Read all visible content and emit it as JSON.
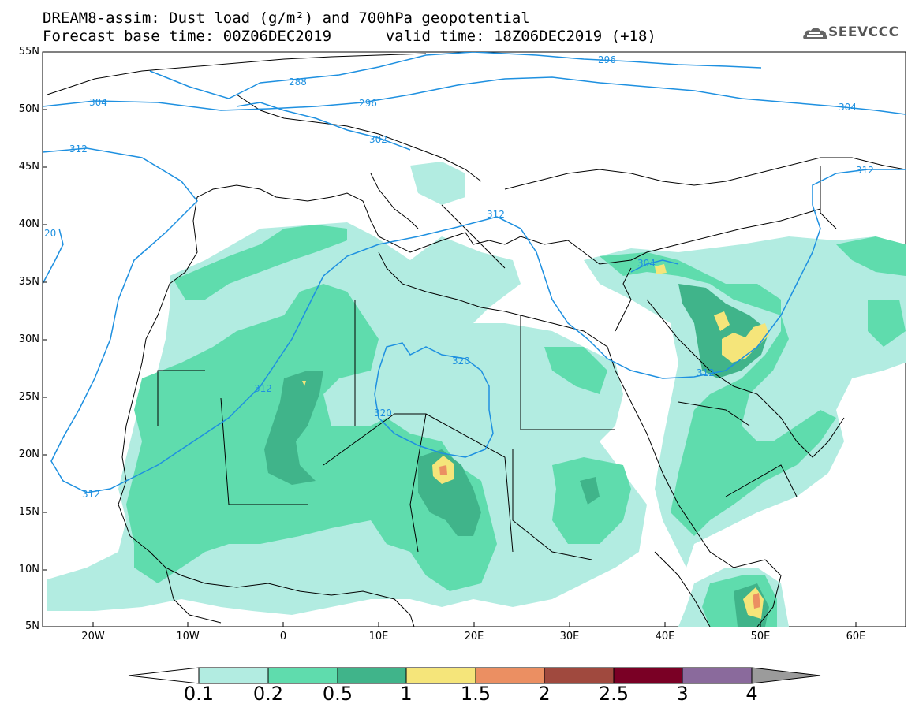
{
  "title": {
    "line1": "DREAM8-assim: Dust load (g/m²) and 700hPa geopotential",
    "line2_left": "Forecast base time: 00Z06DEC2019",
    "line2_right": "valid time: 18Z06DEC2019 (+18)"
  },
  "logo": {
    "text": "SEEVCCC",
    "icon": "cloud-icon"
  },
  "axes": {
    "lat_labels": [
      "55N",
      "50N",
      "45N",
      "40N",
      "35N",
      "30N",
      "25N",
      "20N",
      "15N",
      "10N",
      "5N"
    ],
    "lon_labels": [
      "20W",
      "10W",
      "0",
      "10E",
      "20E",
      "30E",
      "40E",
      "50E",
      "60E"
    ]
  },
  "contour_labels": [
    "296",
    "288",
    "296",
    "304",
    "304",
    "312",
    "302",
    "312",
    "20",
    "312",
    "312",
    "320",
    "320",
    "304",
    "312",
    "312"
  ],
  "colorbar": {
    "labels": [
      "0.1",
      "0.2",
      "0.5",
      "1",
      "1.5",
      "2",
      "2.5",
      "3",
      "4"
    ],
    "colors": [
      "#b2ece1",
      "#5fdcad",
      "#40b48a",
      "#f5e57a",
      "#eb8f62",
      "#a0493e",
      "#7a0025",
      "#8a6a9c",
      "#9b9b9b"
    ]
  },
  "map_colors": {
    "level1": "#b2ece1",
    "level2": "#5fdcad",
    "level3": "#40b48a",
    "level4": "#f5e57a",
    "level5": "#eb8f62",
    "contour": "#1e90e0"
  }
}
